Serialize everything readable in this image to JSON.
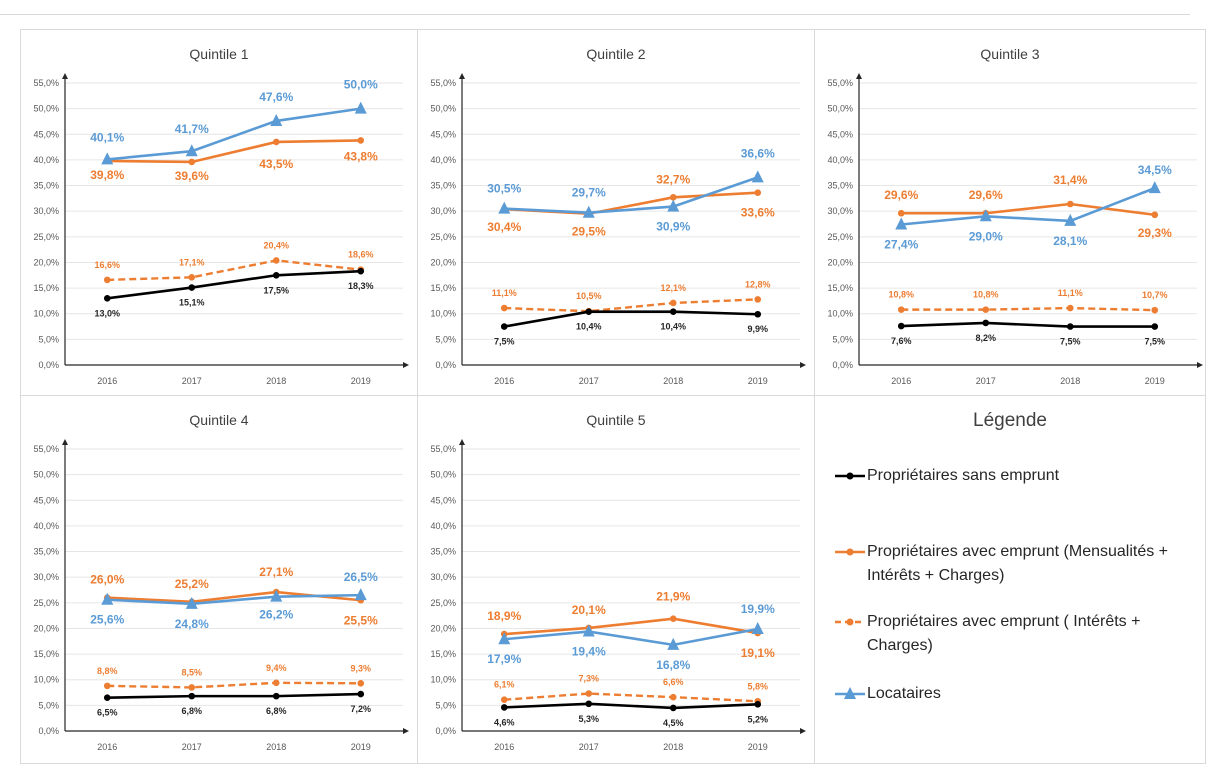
{
  "chart_data": [
    {
      "type": "line",
      "title": "Quintile 1",
      "categories": [
        "2016",
        "2017",
        "2018",
        "2019"
      ],
      "ylim": [
        0,
        55
      ],
      "yticks": [
        "0,0%",
        "5,0%",
        "10,0%",
        "15,0%",
        "20,0%",
        "25,0%",
        "30,0%",
        "35,0%",
        "40,0%",
        "45,0%",
        "50,0%",
        "55,0%"
      ],
      "series": [
        {
          "key": "sans",
          "values": [
            13.0,
            15.1,
            17.5,
            18.3
          ],
          "labels": [
            "13,0%",
            "15,1%",
            "17,5%",
            "18,3%"
          ]
        },
        {
          "key": "avec_mic",
          "values": [
            39.8,
            39.6,
            43.5,
            43.8
          ],
          "labels": [
            "39,8%",
            "39,6%",
            "43,5%",
            "43,8%"
          ]
        },
        {
          "key": "avec_ic",
          "values": [
            16.6,
            17.1,
            20.4,
            18.6
          ],
          "labels": [
            "16,6%",
            "17,1%",
            "20,4%",
            "18,6%"
          ]
        },
        {
          "key": "loc",
          "values": [
            40.1,
            41.7,
            47.6,
            50.0
          ],
          "labels": [
            "40,1%",
            "41,7%",
            "47,6%",
            "50,0%"
          ]
        }
      ]
    },
    {
      "type": "line",
      "title": "Quintile 2",
      "categories": [
        "2016",
        "2017",
        "2018",
        "2019"
      ],
      "ylim": [
        0,
        55
      ],
      "yticks": [
        "0,0%",
        "5,0%",
        "10,0%",
        "15,0%",
        "20,0%",
        "25,0%",
        "30,0%",
        "35,0%",
        "40,0%",
        "45,0%",
        "50,0%",
        "55,0%"
      ],
      "series": [
        {
          "key": "sans",
          "values": [
            7.5,
            10.4,
            10.4,
            9.9
          ],
          "labels": [
            "7,5%",
            "10,4%",
            "10,4%",
            "9,9%"
          ]
        },
        {
          "key": "avec_mic",
          "values": [
            30.4,
            29.5,
            32.7,
            33.6
          ],
          "labels": [
            "30,4%",
            "29,5%",
            "32,7%",
            "33,6%"
          ]
        },
        {
          "key": "avec_ic",
          "values": [
            11.1,
            10.5,
            12.1,
            12.8
          ],
          "labels": [
            "11,1%",
            "10,5%",
            "12,1%",
            "12,8%"
          ]
        },
        {
          "key": "loc",
          "values": [
            30.5,
            29.7,
            30.9,
            36.6
          ],
          "labels": [
            "30,5%",
            "29,7%",
            "30,9%",
            "36,6%"
          ]
        }
      ]
    },
    {
      "type": "line",
      "title": "Quintile 3",
      "categories": [
        "2016",
        "2017",
        "2018",
        "2019"
      ],
      "ylim": [
        0,
        55
      ],
      "yticks": [
        "0,0%",
        "5,0%",
        "10,0%",
        "15,0%",
        "20,0%",
        "25,0%",
        "30,0%",
        "35,0%",
        "40,0%",
        "45,0%",
        "50,0%",
        "55,0%"
      ],
      "series": [
        {
          "key": "sans",
          "values": [
            7.6,
            8.2,
            7.5,
            7.5
          ],
          "labels": [
            "7,6%",
            "8,2%",
            "7,5%",
            "7,5%"
          ]
        },
        {
          "key": "avec_mic",
          "values": [
            29.6,
            29.6,
            31.4,
            29.3
          ],
          "labels": [
            "29,6%",
            "29,6%",
            "31,4%",
            "29,3%"
          ]
        },
        {
          "key": "avec_ic",
          "values": [
            10.8,
            10.8,
            11.1,
            10.7
          ],
          "labels": [
            "10,8%",
            "10,8%",
            "11,1%",
            "10,7%"
          ]
        },
        {
          "key": "loc",
          "values": [
            27.4,
            29.0,
            28.1,
            34.5
          ],
          "labels": [
            "27,4%",
            "29,0%",
            "28,1%",
            "34,5%"
          ]
        }
      ]
    },
    {
      "type": "line",
      "title": "Quintile 4",
      "categories": [
        "2016",
        "2017",
        "2018",
        "2019"
      ],
      "ylim": [
        0,
        55
      ],
      "yticks": [
        "0,0%",
        "5,0%",
        "10,0%",
        "15,0%",
        "20,0%",
        "25,0%",
        "30,0%",
        "35,0%",
        "40,0%",
        "45,0%",
        "50,0%",
        "55,0%"
      ],
      "series": [
        {
          "key": "sans",
          "values": [
            6.5,
            6.8,
            6.8,
            7.2
          ],
          "labels": [
            "6,5%",
            "6,8%",
            "6,8%",
            "7,2%"
          ]
        },
        {
          "key": "avec_mic",
          "values": [
            26.0,
            25.2,
            27.1,
            25.5
          ],
          "labels": [
            "26,0%",
            "25,2%",
            "27,1%",
            "25,5%"
          ]
        },
        {
          "key": "avec_ic",
          "values": [
            8.8,
            8.5,
            9.4,
            9.3
          ],
          "labels": [
            "8,8%",
            "8,5%",
            "9,4%",
            "9,3%"
          ]
        },
        {
          "key": "loc",
          "values": [
            25.6,
            24.8,
            26.2,
            26.5
          ],
          "labels": [
            "25,6%",
            "24,8%",
            "26,2%",
            "26,5%"
          ]
        }
      ]
    },
    {
      "type": "line",
      "title": "Quintile 5",
      "categories": [
        "2016",
        "2017",
        "2018",
        "2019"
      ],
      "ylim": [
        0,
        55
      ],
      "yticks": [
        "0,0%",
        "5,0%",
        "10,0%",
        "15,0%",
        "20,0%",
        "25,0%",
        "30,0%",
        "35,0%",
        "40,0%",
        "45,0%",
        "50,0%",
        "55,0%"
      ],
      "series": [
        {
          "key": "sans",
          "values": [
            4.6,
            5.3,
            4.5,
            5.2
          ],
          "labels": [
            "4,6%",
            "5,3%",
            "4,5%",
            "5,2%"
          ]
        },
        {
          "key": "avec_mic",
          "values": [
            18.9,
            20.1,
            21.9,
            19.1
          ],
          "labels": [
            "18,9%",
            "20,1%",
            "21,9%",
            "19,1%"
          ]
        },
        {
          "key": "avec_ic",
          "values": [
            6.1,
            7.3,
            6.6,
            5.8
          ],
          "labels": [
            "6,1%",
            "7,3%",
            "6,6%",
            "5,8%"
          ]
        },
        {
          "key": "loc",
          "values": [
            17.9,
            19.4,
            16.8,
            19.9
          ],
          "labels": [
            "17,9%",
            "19,4%",
            "16,8%",
            "19,9%"
          ]
        }
      ]
    }
  ],
  "legend": {
    "title": "Légende",
    "items": [
      {
        "key": "sans",
        "label": "Propriétaires sans emprunt",
        "color": "#000000",
        "dash": false,
        "marker": "circle"
      },
      {
        "key": "avec_mic",
        "label": "Propriétaires avec emprunt (Mensualités + Intérêts + Charges)",
        "color": "#ed7d31",
        "dash": false,
        "marker": "circle"
      },
      {
        "key": "avec_ic",
        "label": "Propriétaires avec emprunt ( Intérêts + Charges)",
        "color": "#ed7d31",
        "dash": true,
        "marker": "circle"
      },
      {
        "key": "loc",
        "label": "Locataires",
        "color": "#5b9bd5",
        "dash": false,
        "marker": "triangle"
      }
    ]
  }
}
